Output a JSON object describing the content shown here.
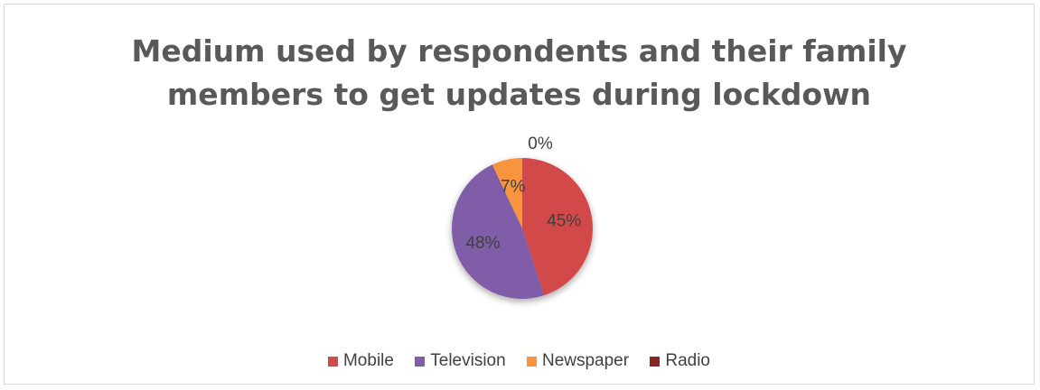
{
  "chart_data": {
    "type": "pie",
    "title": "Medium used by respondents and their family members to get updates during lockdown",
    "title_lines": [
      "Medium used by respondents and their family",
      "members to get updates during lockdown"
    ],
    "categories": [
      "Mobile",
      "Television",
      "Newspaper",
      "Radio"
    ],
    "values": [
      45,
      48,
      7,
      0
    ],
    "data_labels": [
      "45%",
      "48%",
      "7%",
      "0%"
    ],
    "colors": [
      "#d24a49",
      "#7f5da8",
      "#f7943c",
      "#8b2524"
    ],
    "legend_position": "bottom"
  }
}
